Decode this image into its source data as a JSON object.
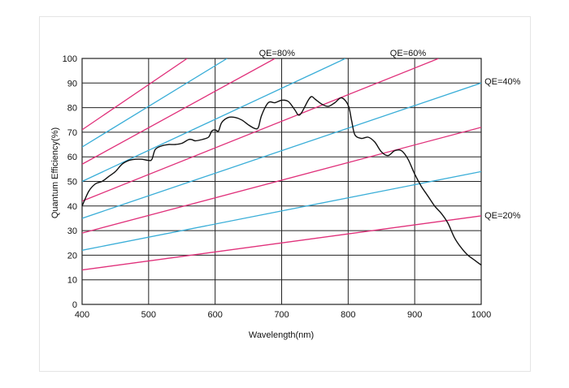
{
  "chart_data": {
    "type": "line",
    "title": "",
    "xlabel": "Wavelength(nm)",
    "ylabel": "Quantum Efficiency(%)",
    "xlim": [
      400,
      1000
    ],
    "ylim": [
      0,
      100
    ],
    "xticks": [
      400,
      500,
      600,
      700,
      800,
      900,
      1000
    ],
    "yticks": [
      0,
      10,
      20,
      30,
      40,
      50,
      60,
      70,
      80,
      90,
      100
    ],
    "grid": true,
    "colors": {
      "pink": "#e0307a",
      "blue": "#3aaed8",
      "curve": "#111111",
      "grid": "#222222"
    },
    "reference_lines": [
      {
        "color": "blue",
        "x": [
          400,
          1000
        ],
        "y": [
          22,
          54
        ]
      },
      {
        "color": "blue",
        "x": [
          400,
          1000
        ],
        "y": [
          35,
          90
        ]
      },
      {
        "color": "blue",
        "x": [
          400,
          796
        ],
        "y": [
          50,
          100
        ]
      },
      {
        "color": "blue",
        "x": [
          400,
          618
        ],
        "y": [
          64,
          100
        ]
      },
      {
        "color": "pink",
        "x": [
          400,
          1000
        ],
        "y": [
          14,
          36
        ]
      },
      {
        "color": "pink",
        "x": [
          400,
          1000
        ],
        "y": [
          29,
          72
        ]
      },
      {
        "color": "pink",
        "x": [
          400,
          936
        ],
        "y": [
          42,
          100
        ]
      },
      {
        "color": "pink",
        "x": [
          400,
          690
        ],
        "y": [
          57,
          100
        ]
      },
      {
        "color": "pink",
        "x": [
          400,
          558
        ],
        "y": [
          71,
          100
        ]
      }
    ],
    "series": [
      {
        "name": "Quantum Efficiency",
        "x": [
          400,
          410,
          420,
          430,
          440,
          450,
          460,
          470,
          480,
          490,
          500,
          505,
          510,
          520,
          530,
          540,
          550,
          560,
          565,
          570,
          580,
          590,
          595,
          600,
          605,
          610,
          620,
          630,
          640,
          650,
          660,
          665,
          670,
          680,
          690,
          700,
          710,
          720,
          725,
          730,
          740,
          745,
          750,
          760,
          770,
          780,
          790,
          800,
          805,
          810,
          820,
          830,
          840,
          850,
          860,
          870,
          880,
          890,
          900,
          910,
          920,
          930,
          940,
          950,
          960,
          970,
          980,
          990,
          1000
        ],
        "y": [
          40,
          46,
          49,
          50,
          52,
          54,
          57,
          58.5,
          59,
          59,
          58.5,
          59,
          63,
          64.5,
          65,
          65,
          65.5,
          67,
          67,
          66.5,
          67,
          68,
          70.5,
          71,
          70.5,
          74,
          76,
          76,
          75,
          73,
          71.5,
          72,
          77,
          82,
          82,
          83,
          82.5,
          79,
          77,
          78,
          83,
          84.5,
          83.5,
          81.5,
          80.5,
          82,
          84,
          81,
          75,
          69,
          67.5,
          68,
          66,
          62,
          60.5,
          62.5,
          62.5,
          59,
          53,
          48,
          44,
          40,
          37,
          33,
          27,
          23,
          20,
          18,
          16
        ]
      }
    ],
    "annotations": [
      {
        "text": "QE=80%",
        "x": 693,
        "y": 101,
        "align": "middle"
      },
      {
        "text": "QE=60%",
        "x": 890,
        "y": 101,
        "align": "middle"
      },
      {
        "text": "QE=40%",
        "x": 1005,
        "y": 89.5,
        "align": "start"
      },
      {
        "text": "QE=20%",
        "x": 1005,
        "y": 35,
        "align": "start"
      }
    ]
  }
}
